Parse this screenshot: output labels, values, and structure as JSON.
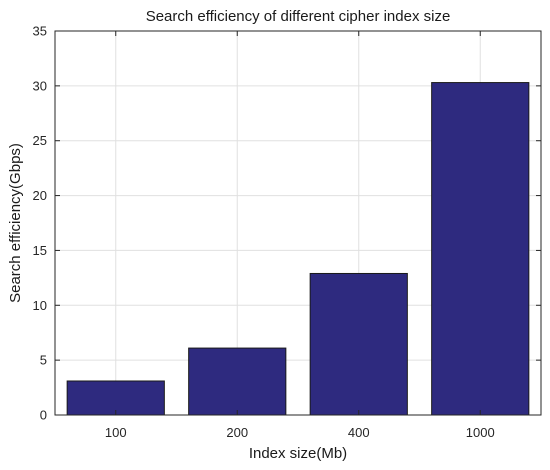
{
  "chart_data": {
    "type": "bar",
    "title": "Search efficiency of different cipher index size",
    "xlabel": "Index size(Mb)",
    "ylabel": "Search efficiency(Gbps)",
    "categories": [
      "100",
      "200",
      "400",
      "1000"
    ],
    "values": [
      3.1,
      6.1,
      12.9,
      30.3
    ],
    "ylim": [
      0,
      35
    ],
    "yticks": [
      0,
      5,
      10,
      15,
      20,
      25,
      30,
      35
    ],
    "grid": true,
    "bar_color": "#2e2a7f"
  }
}
